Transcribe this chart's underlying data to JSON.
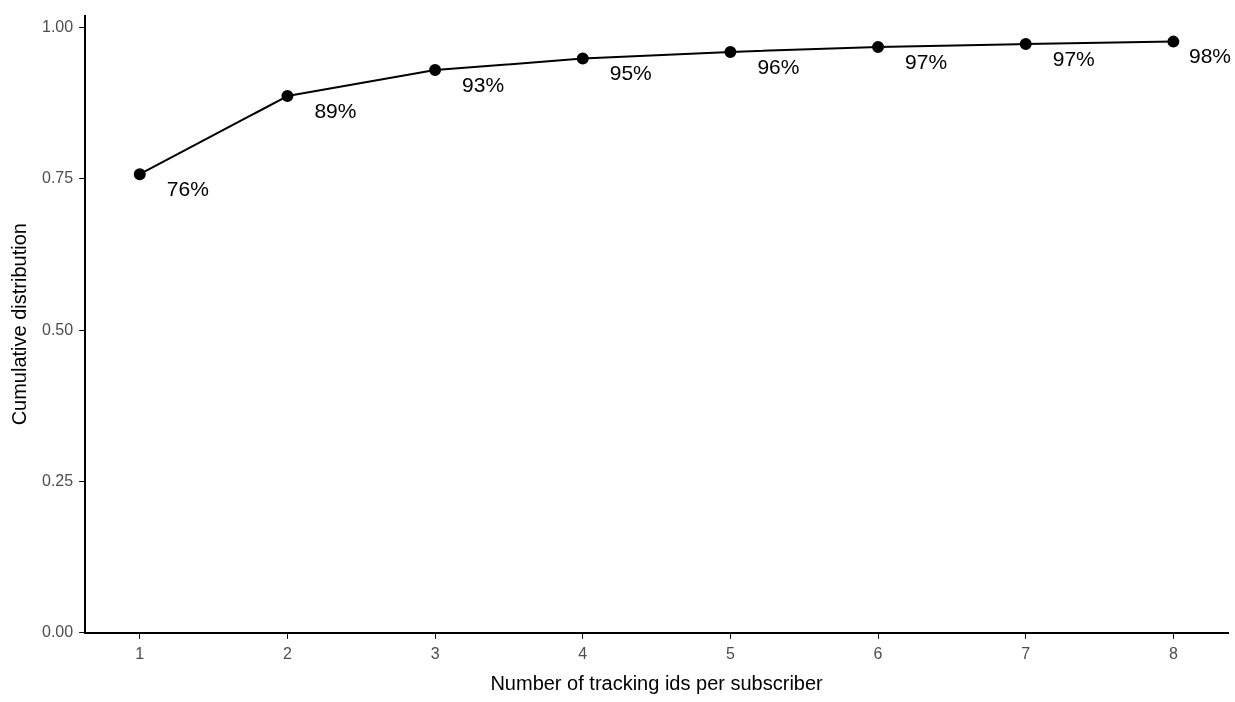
{
  "chart_data": {
    "type": "line",
    "xlabel": "Number of tracking ids per subscriber",
    "ylabel": "Cumulative distribution",
    "x": [
      1,
      2,
      3,
      4,
      5,
      6,
      7,
      8
    ],
    "series": [
      {
        "color": "#000000",
        "values": [
          0.758,
          0.887,
          0.93,
          0.949,
          0.96,
          0.968,
          0.973,
          0.977
        ],
        "value_labels": [
          "76%",
          "89%",
          "93%",
          "95%",
          "96%",
          "97%",
          "97%",
          "98%"
        ]
      }
    ],
    "xlim": [
      0.63,
      8.37
    ],
    "xticks": [
      1,
      2,
      3,
      4,
      5,
      6,
      7,
      8
    ],
    "ylim": [
      0,
      1.02
    ],
    "yticks": [
      {
        "value": 0,
        "label": "0.00"
      },
      {
        "value": 0.25,
        "label": "0.25"
      },
      {
        "value": 0.5,
        "label": "0.50"
      },
      {
        "value": 0.75,
        "label": "0.75"
      },
      {
        "value": 1,
        "label": "1.00"
      }
    ],
    "grid": false,
    "legend": false,
    "marker": "circle",
    "line_style": "solid"
  }
}
